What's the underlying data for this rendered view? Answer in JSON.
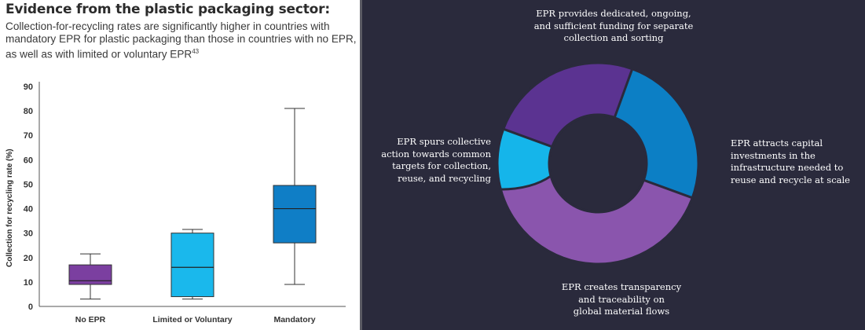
{
  "left": {
    "heading": "Evidence from the plastic packaging sector:",
    "subtitle": "Collection-for-recycling rates are significantly higher in countries with mandatory EPR for plastic packaging than those in countries with no EPR, as well as with limited or voluntary EPR",
    "footnote": "43"
  },
  "chart_data": {
    "type": "boxplot",
    "ylabel": "Collection for recycling rate (%)",
    "ylim": [
      0,
      90
    ],
    "yticks": [
      0,
      10,
      20,
      30,
      40,
      50,
      60,
      70,
      80,
      90
    ],
    "grid": false,
    "legend": "none",
    "categories": [
      "No EPR",
      "Limited or Voluntary",
      "Mandatory"
    ],
    "boxes": [
      {
        "category": "No EPR",
        "min": 3,
        "q1": 9,
        "median": 10.5,
        "q3": 17,
        "max": 21.5,
        "color": "#7b3fa0"
      },
      {
        "category": "Limited or Voluntary",
        "min": 3,
        "q1": 4,
        "median": 16,
        "q3": 30,
        "max": 31.5,
        "color": "#1ab8ec"
      },
      {
        "category": "Mandatory",
        "min": 9,
        "q1": 26,
        "median": 40,
        "q3": 49.5,
        "max": 81,
        "color": "#0f7ec6"
      }
    ]
  },
  "cycle": {
    "nodes": [
      {
        "text": "EPR provides dedicated, ongoing,\nand sufficient funding for separate\ncollection and sorting",
        "color": "#5b3391"
      },
      {
        "text": "EPR attracts capital\ninvestments in the\ninfrastructure needed to\nreuse and recycle at scale",
        "color": "#0c7fc5"
      },
      {
        "text": "EPR creates transparency\nand traceability on\nglobal material flows",
        "color": "#8a55ad"
      },
      {
        "text": "EPR spurs collective\naction towards common\ntargets for collection,\nreuse, and recycling",
        "color": "#15b5ea"
      }
    ],
    "background": "#2a2a3c"
  }
}
